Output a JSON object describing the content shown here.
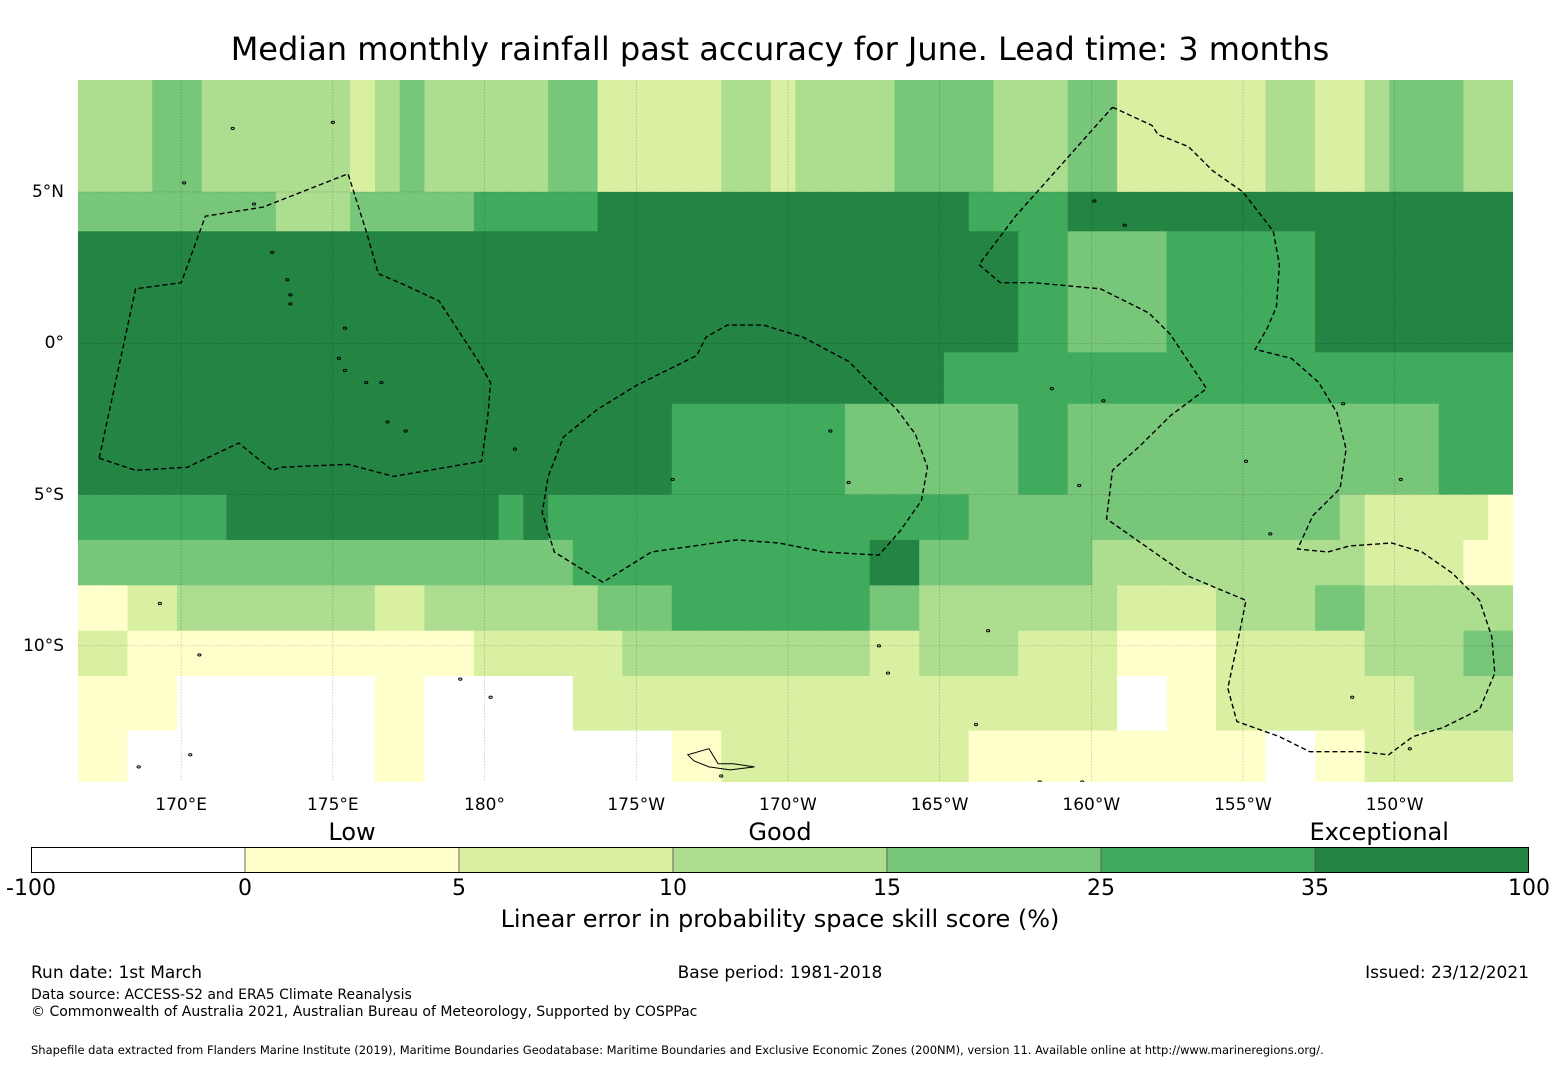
{
  "title": "Median monthly rainfall past accuracy for June. Lead time: 3 months",
  "map": {
    "extent": {
      "lon_min": 166.6,
      "lon_max": 213.9,
      "lat_min": -14.5,
      "lat_max": 8.7
    },
    "lon_ticks": [
      {
        "lon": 170,
        "label": "170°E"
      },
      {
        "lon": 175,
        "label": "175°E"
      },
      {
        "lon": 180,
        "label": "180°"
      },
      {
        "lon": 185,
        "label": "175°W"
      },
      {
        "lon": 190,
        "label": "170°W"
      },
      {
        "lon": 195,
        "label": "165°W"
      },
      {
        "lon": 200,
        "label": "160°W"
      },
      {
        "lon": 205,
        "label": "155°W"
      },
      {
        "lon": 210,
        "label": "150°W"
      }
    ],
    "lat_ticks": [
      {
        "lat": 5,
        "label": "5°N"
      },
      {
        "lat": 0,
        "label": "0°"
      },
      {
        "lat": -5,
        "label": "5°S"
      },
      {
        "lat": -10,
        "label": "10°S"
      }
    ],
    "skill_bands": [
      {
        "lat_from": 8.7,
        "lat_to": 5.0,
        "levels": [
          3,
          3,
          3,
          4,
          4,
          3,
          3,
          3,
          3,
          3,
          3,
          2,
          3,
          4,
          3,
          3,
          3,
          3,
          3,
          4,
          4,
          2,
          2,
          2,
          2,
          2,
          3,
          3,
          2,
          3,
          3,
          3,
          3,
          4,
          4,
          4,
          4,
          3,
          3,
          3,
          4,
          4,
          2,
          2,
          2,
          2,
          2,
          2,
          3,
          3,
          2,
          2,
          3,
          4,
          4,
          4,
          3,
          3
        ]
      },
      {
        "lat_from": 5.0,
        "lat_to": 3.7,
        "levels": [
          4,
          4,
          4,
          4,
          4,
          4,
          4,
          4,
          3,
          3,
          3,
          4,
          4,
          4,
          4,
          4,
          5,
          5,
          5,
          5,
          5,
          6,
          6,
          6,
          6,
          6,
          6,
          6,
          6,
          6,
          6,
          6,
          6,
          6,
          6,
          6,
          5,
          5,
          5,
          5,
          6,
          6,
          6,
          6,
          6,
          6,
          6,
          6,
          6,
          6,
          6,
          6,
          6,
          6,
          6,
          6,
          6,
          6
        ]
      },
      {
        "lat_from": 3.7,
        "lat_to": -0.3,
        "levels": [
          6,
          6,
          6,
          6,
          6,
          6,
          6,
          6,
          6,
          6,
          6,
          6,
          6,
          6,
          6,
          6,
          6,
          6,
          6,
          6,
          6,
          6,
          6,
          6,
          6,
          6,
          6,
          6,
          6,
          6,
          6,
          6,
          6,
          6,
          6,
          6,
          6,
          6,
          5,
          5,
          4,
          4,
          4,
          4,
          5,
          5,
          5,
          5,
          5,
          5,
          6,
          6,
          6,
          6,
          6,
          6,
          6,
          6
        ]
      },
      {
        "lat_from": -0.3,
        "lat_to": -2.0,
        "levels": [
          6,
          6,
          6,
          6,
          6,
          6,
          6,
          6,
          6,
          6,
          6,
          6,
          6,
          6,
          6,
          6,
          6,
          6,
          6,
          6,
          6,
          6,
          6,
          6,
          6,
          6,
          6,
          6,
          6,
          6,
          6,
          6,
          6,
          6,
          6,
          5,
          5,
          5,
          5,
          5,
          5,
          5,
          5,
          5,
          5,
          5,
          5,
          5,
          5,
          5,
          5,
          5,
          5,
          5,
          5,
          5,
          5,
          5
        ]
      },
      {
        "lat_from": -2.0,
        "lat_to": -5.0,
        "levels": [
          6,
          6,
          6,
          6,
          6,
          6,
          6,
          6,
          6,
          6,
          6,
          6,
          6,
          6,
          6,
          6,
          6,
          6,
          6,
          6,
          6,
          6,
          6,
          6,
          5,
          5,
          5,
          5,
          5,
          5,
          5,
          4,
          4,
          4,
          4,
          4,
          4,
          4,
          5,
          5,
          4,
          4,
          4,
          4,
          4,
          4,
          4,
          4,
          4,
          4,
          4,
          4,
          4,
          4,
          4,
          5,
          5,
          5
        ]
      },
      {
        "lat_from": -5.0,
        "lat_to": -6.5,
        "levels": [
          5,
          5,
          5,
          5,
          5,
          5,
          6,
          6,
          6,
          6,
          6,
          6,
          6,
          6,
          6,
          6,
          6,
          5,
          6,
          5,
          5,
          5,
          5,
          5,
          5,
          5,
          5,
          5,
          5,
          5,
          5,
          5,
          5,
          5,
          5,
          5,
          4,
          4,
          4,
          4,
          4,
          4,
          4,
          4,
          4,
          4,
          4,
          4,
          4,
          4,
          4,
          3,
          2,
          2,
          2,
          2,
          2,
          1
        ]
      },
      {
        "lat_from": -6.5,
        "lat_to": -8.0,
        "levels": [
          4,
          4,
          4,
          4,
          4,
          4,
          4,
          4,
          4,
          4,
          4,
          4,
          4,
          4,
          4,
          4,
          4,
          4,
          4,
          4,
          5,
          5,
          5,
          5,
          5,
          5,
          5,
          5,
          5,
          5,
          5,
          5,
          6,
          6,
          4,
          4,
          4,
          4,
          4,
          4,
          4,
          3,
          3,
          3,
          3,
          3,
          3,
          3,
          3,
          3,
          3,
          3,
          2,
          2,
          2,
          2,
          1,
          1
        ]
      },
      {
        "lat_from": -8.0,
        "lat_to": -9.5,
        "levels": [
          1,
          1,
          2,
          2,
          3,
          3,
          3,
          3,
          3,
          3,
          3,
          3,
          2,
          2,
          3,
          3,
          3,
          3,
          3,
          3,
          3,
          4,
          4,
          4,
          5,
          5,
          5,
          5,
          5,
          5,
          5,
          5,
          4,
          4,
          3,
          3,
          3,
          3,
          3,
          3,
          3,
          3,
          2,
          2,
          2,
          2,
          3,
          3,
          3,
          3,
          4,
          4,
          3,
          3,
          3,
          3,
          3,
          3
        ]
      },
      {
        "lat_from": -9.5,
        "lat_to": -11.0,
        "levels": [
          2,
          2,
          1,
          1,
          1,
          1,
          1,
          1,
          1,
          1,
          1,
          1,
          1,
          1,
          1,
          1,
          2,
          2,
          2,
          2,
          2,
          2,
          3,
          3,
          3,
          3,
          3,
          3,
          3,
          3,
          3,
          3,
          2,
          2,
          3,
          3,
          3,
          3,
          2,
          2,
          2,
          2,
          1,
          1,
          1,
          1,
          2,
          2,
          2,
          2,
          2,
          2,
          3,
          3,
          3,
          3,
          4,
          4
        ]
      },
      {
        "lat_from": -11.0,
        "lat_to": -12.8,
        "levels": [
          1,
          1,
          1,
          1,
          0,
          0,
          0,
          0,
          0,
          0,
          0,
          0,
          1,
          1,
          0,
          0,
          0,
          0,
          0,
          0,
          2,
          2,
          2,
          2,
          2,
          2,
          2,
          2,
          2,
          2,
          2,
          2,
          2,
          2,
          2,
          2,
          2,
          2,
          2,
          2,
          2,
          2,
          0,
          0,
          1,
          1,
          2,
          2,
          2,
          2,
          2,
          2,
          2,
          2,
          3,
          3,
          3,
          3
        ]
      },
      {
        "lat_from": -12.8,
        "lat_to": -14.5,
        "levels": [
          1,
          1,
          0,
          0,
          0,
          0,
          0,
          0,
          0,
          0,
          0,
          0,
          1,
          1,
          0,
          0,
          0,
          0,
          0,
          0,
          0,
          0,
          0,
          0,
          1,
          1,
          2,
          2,
          2,
          2,
          2,
          2,
          2,
          2,
          2,
          2,
          1,
          1,
          1,
          1,
          1,
          1,
          1,
          1,
          1,
          1,
          1,
          1,
          0,
          0,
          1,
          1,
          2,
          2,
          2,
          2,
          2,
          2
        ]
      }
    ],
    "eez_outlines": [
      [
        [
          167.3,
          -3.8
        ],
        [
          168.5,
          -4.2
        ],
        [
          170.2,
          -4.1
        ],
        [
          171.9,
          -3.3
        ],
        [
          173.0,
          -4.2
        ],
        [
          173.3,
          -4.1
        ],
        [
          175.5,
          -4.0
        ],
        [
          177.0,
          -4.4
        ],
        [
          179.9,
          -3.9
        ],
        [
          180.1,
          -2.5
        ],
        [
          180.2,
          -1.3
        ],
        [
          179.8,
          -0.6
        ],
        [
          178.5,
          1.4
        ],
        [
          177.2,
          2.0
        ],
        [
          176.5,
          2.3
        ],
        [
          176.1,
          3.7
        ],
        [
          175.5,
          5.6
        ],
        [
          172.7,
          4.5
        ],
        [
          170.8,
          4.2
        ],
        [
          170.0,
          2.0
        ],
        [
          168.5,
          1.8
        ],
        [
          167.3,
          -3.8
        ]
      ],
      [
        [
          183.9,
          -7.9
        ],
        [
          182.3,
          -6.9
        ],
        [
          181.9,
          -5.6
        ],
        [
          182.1,
          -4.4
        ],
        [
          182.6,
          -3.1
        ],
        [
          183.7,
          -2.2
        ],
        [
          185.0,
          -1.4
        ],
        [
          187.0,
          -0.4
        ],
        [
          187.3,
          0.2
        ],
        [
          188.0,
          0.6
        ],
        [
          189.2,
          0.6
        ],
        [
          190.5,
          0.2
        ],
        [
          192.0,
          -0.6
        ],
        [
          192.7,
          -1.3
        ],
        [
          193.6,
          -2.2
        ],
        [
          194.2,
          -3.0
        ],
        [
          194.6,
          -4.1
        ],
        [
          194.4,
          -5.2
        ],
        [
          193.7,
          -6.2
        ],
        [
          193.0,
          -7.0
        ],
        [
          191.2,
          -6.9
        ],
        [
          189.7,
          -6.6
        ],
        [
          188.3,
          -6.5
        ],
        [
          185.5,
          -6.9
        ],
        [
          183.9,
          -7.9
        ]
      ],
      [
        [
          200.7,
          7.8
        ],
        [
          202.0,
          7.2
        ],
        [
          202.2,
          6.9
        ],
        [
          203.2,
          6.5
        ],
        [
          204.0,
          5.7
        ],
        [
          205.0,
          5.0
        ],
        [
          206.0,
          3.7
        ],
        [
          206.2,
          2.6
        ],
        [
          206.1,
          1.2
        ],
        [
          205.8,
          0.5
        ],
        [
          205.4,
          -0.2
        ],
        [
          206.6,
          -0.5
        ],
        [
          207.5,
          -1.3
        ],
        [
          208.1,
          -2.3
        ],
        [
          208.4,
          -3.5
        ],
        [
          208.2,
          -4.8
        ],
        [
          207.3,
          -5.7
        ],
        [
          206.8,
          -6.8
        ],
        [
          207.8,
          -6.9
        ],
        [
          208.5,
          -6.7
        ],
        [
          209.9,
          -6.6
        ],
        [
          210.9,
          -6.9
        ],
        [
          211.9,
          -7.6
        ],
        [
          212.8,
          -8.5
        ],
        [
          213.2,
          -9.7
        ],
        [
          213.3,
          -10.9
        ],
        [
          212.8,
          -12.1
        ],
        [
          211.6,
          -12.7
        ],
        [
          210.6,
          -13.0
        ],
        [
          209.8,
          -13.6
        ],
        [
          208.9,
          -13.5
        ],
        [
          207.2,
          -13.5
        ],
        [
          206.2,
          -13.0
        ],
        [
          204.8,
          -12.5
        ],
        [
          204.5,
          -11.4
        ],
        [
          204.8,
          -10.0
        ],
        [
          205.1,
          -8.5
        ],
        [
          203.2,
          -7.7
        ],
        [
          200.5,
          -5.8
        ],
        [
          200.7,
          -4.2
        ],
        [
          201.6,
          -3.4
        ],
        [
          202.6,
          -2.4
        ],
        [
          203.8,
          -1.5
        ],
        [
          203.0,
          -0.3
        ],
        [
          202.6,
          0.3
        ],
        [
          201.9,
          1.0
        ],
        [
          200.3,
          1.8
        ],
        [
          198.1,
          2.0
        ],
        [
          197.0,
          2.0
        ],
        [
          196.3,
          2.6
        ],
        [
          197.5,
          4.2
        ],
        [
          200.7,
          7.8
        ]
      ]
    ],
    "islands": [
      [
        173.0,
        3.0
      ],
      [
        173.5,
        2.1
      ],
      [
        173.6,
        1.6
      ],
      [
        173.6,
        1.3
      ],
      [
        175.4,
        0.5
      ],
      [
        175.2,
        -0.5
      ],
      [
        175.4,
        -0.9
      ],
      [
        176.1,
        -1.3
      ],
      [
        176.6,
        -1.3
      ],
      [
        176.8,
        -2.6
      ],
      [
        177.4,
        -2.9
      ],
      [
        175.0,
        7.3
      ],
      [
        171.7,
        7.1
      ],
      [
        173.0,
        8.8
      ],
      [
        170.1,
        5.3
      ],
      [
        172.4,
        4.6
      ],
      [
        181.0,
        -3.5
      ],
      [
        186.2,
        -4.5
      ],
      [
        191.4,
        -2.9
      ],
      [
        192.0,
        -4.6
      ],
      [
        198.7,
        -1.5
      ],
      [
        199.6,
        -4.7
      ],
      [
        200.4,
        -1.9
      ],
      [
        196.6,
        -9.5
      ],
      [
        196.2,
        -12.6
      ],
      [
        210.2,
        -4.5
      ],
      [
        200.1,
        4.7
      ],
      [
        201.1,
        3.9
      ],
      [
        205.9,
        -6.3
      ],
      [
        208.3,
        -2.0
      ],
      [
        205.1,
        -3.9
      ],
      [
        208.6,
        -11.7
      ],
      [
        169.3,
        -8.6
      ],
      [
        170.6,
        -10.3
      ],
      [
        168.6,
        -14.0
      ],
      [
        170.3,
        -13.6
      ],
      [
        179.2,
        -11.1
      ],
      [
        180.2,
        -11.7
      ],
      [
        187.8,
        -14.3
      ],
      [
        193.3,
        -10.9
      ],
      [
        193.0,
        -10.0
      ],
      [
        198.3,
        -14.5
      ],
      [
        199.7,
        -14.5
      ],
      [
        210.5,
        -13.4
      ]
    ],
    "samoa": [
      [
        186.9,
        -13.8
      ],
      [
        186.7,
        -13.6
      ],
      [
        187.4,
        -13.4
      ],
      [
        187.7,
        -13.9
      ],
      [
        188.2,
        -13.9
      ],
      [
        188.9,
        -14.0
      ],
      [
        188.1,
        -14.1
      ],
      [
        187.4,
        -14.0
      ],
      [
        186.9,
        -13.8
      ]
    ],
    "colorbar": {
      "boundaries": [
        "-100",
        "0",
        "5",
        "10",
        "15",
        "25",
        "35",
        "100"
      ],
      "colors": [
        "#ffffff",
        "#ffffcc",
        "#d9f0a3",
        "#addd8e",
        "#78c679",
        "#41ab5d",
        "#238443"
      ],
      "categories": [
        {
          "label": "Low",
          "at": 1.5
        },
        {
          "label": "Good",
          "at": 3.5
        },
        {
          "label": "Exceptional",
          "at": 6.3
        }
      ],
      "label": "Linear error in probability space skill score (%)"
    }
  },
  "footer": {
    "run_date": "Run date: 1st March",
    "base_period": "Base period: 1981-2018",
    "issued": "Issued: 23/12/2021",
    "data_source": "Data source: ACCESS-S2 and ERA5 Climate Reanalysis",
    "copyright": "© Commonwealth of Australia 2021, Australian Bureau of Meteorology, Supported by COSPPac",
    "shapefile": "Shapefile data extracted from Flanders Marine Institute (2019), Maritime Boundaries Geodatabase: Maritime Boundaries and Exclusive Economic Zones (200NM), version 11. Available online at http://www.marineregions.org/."
  }
}
